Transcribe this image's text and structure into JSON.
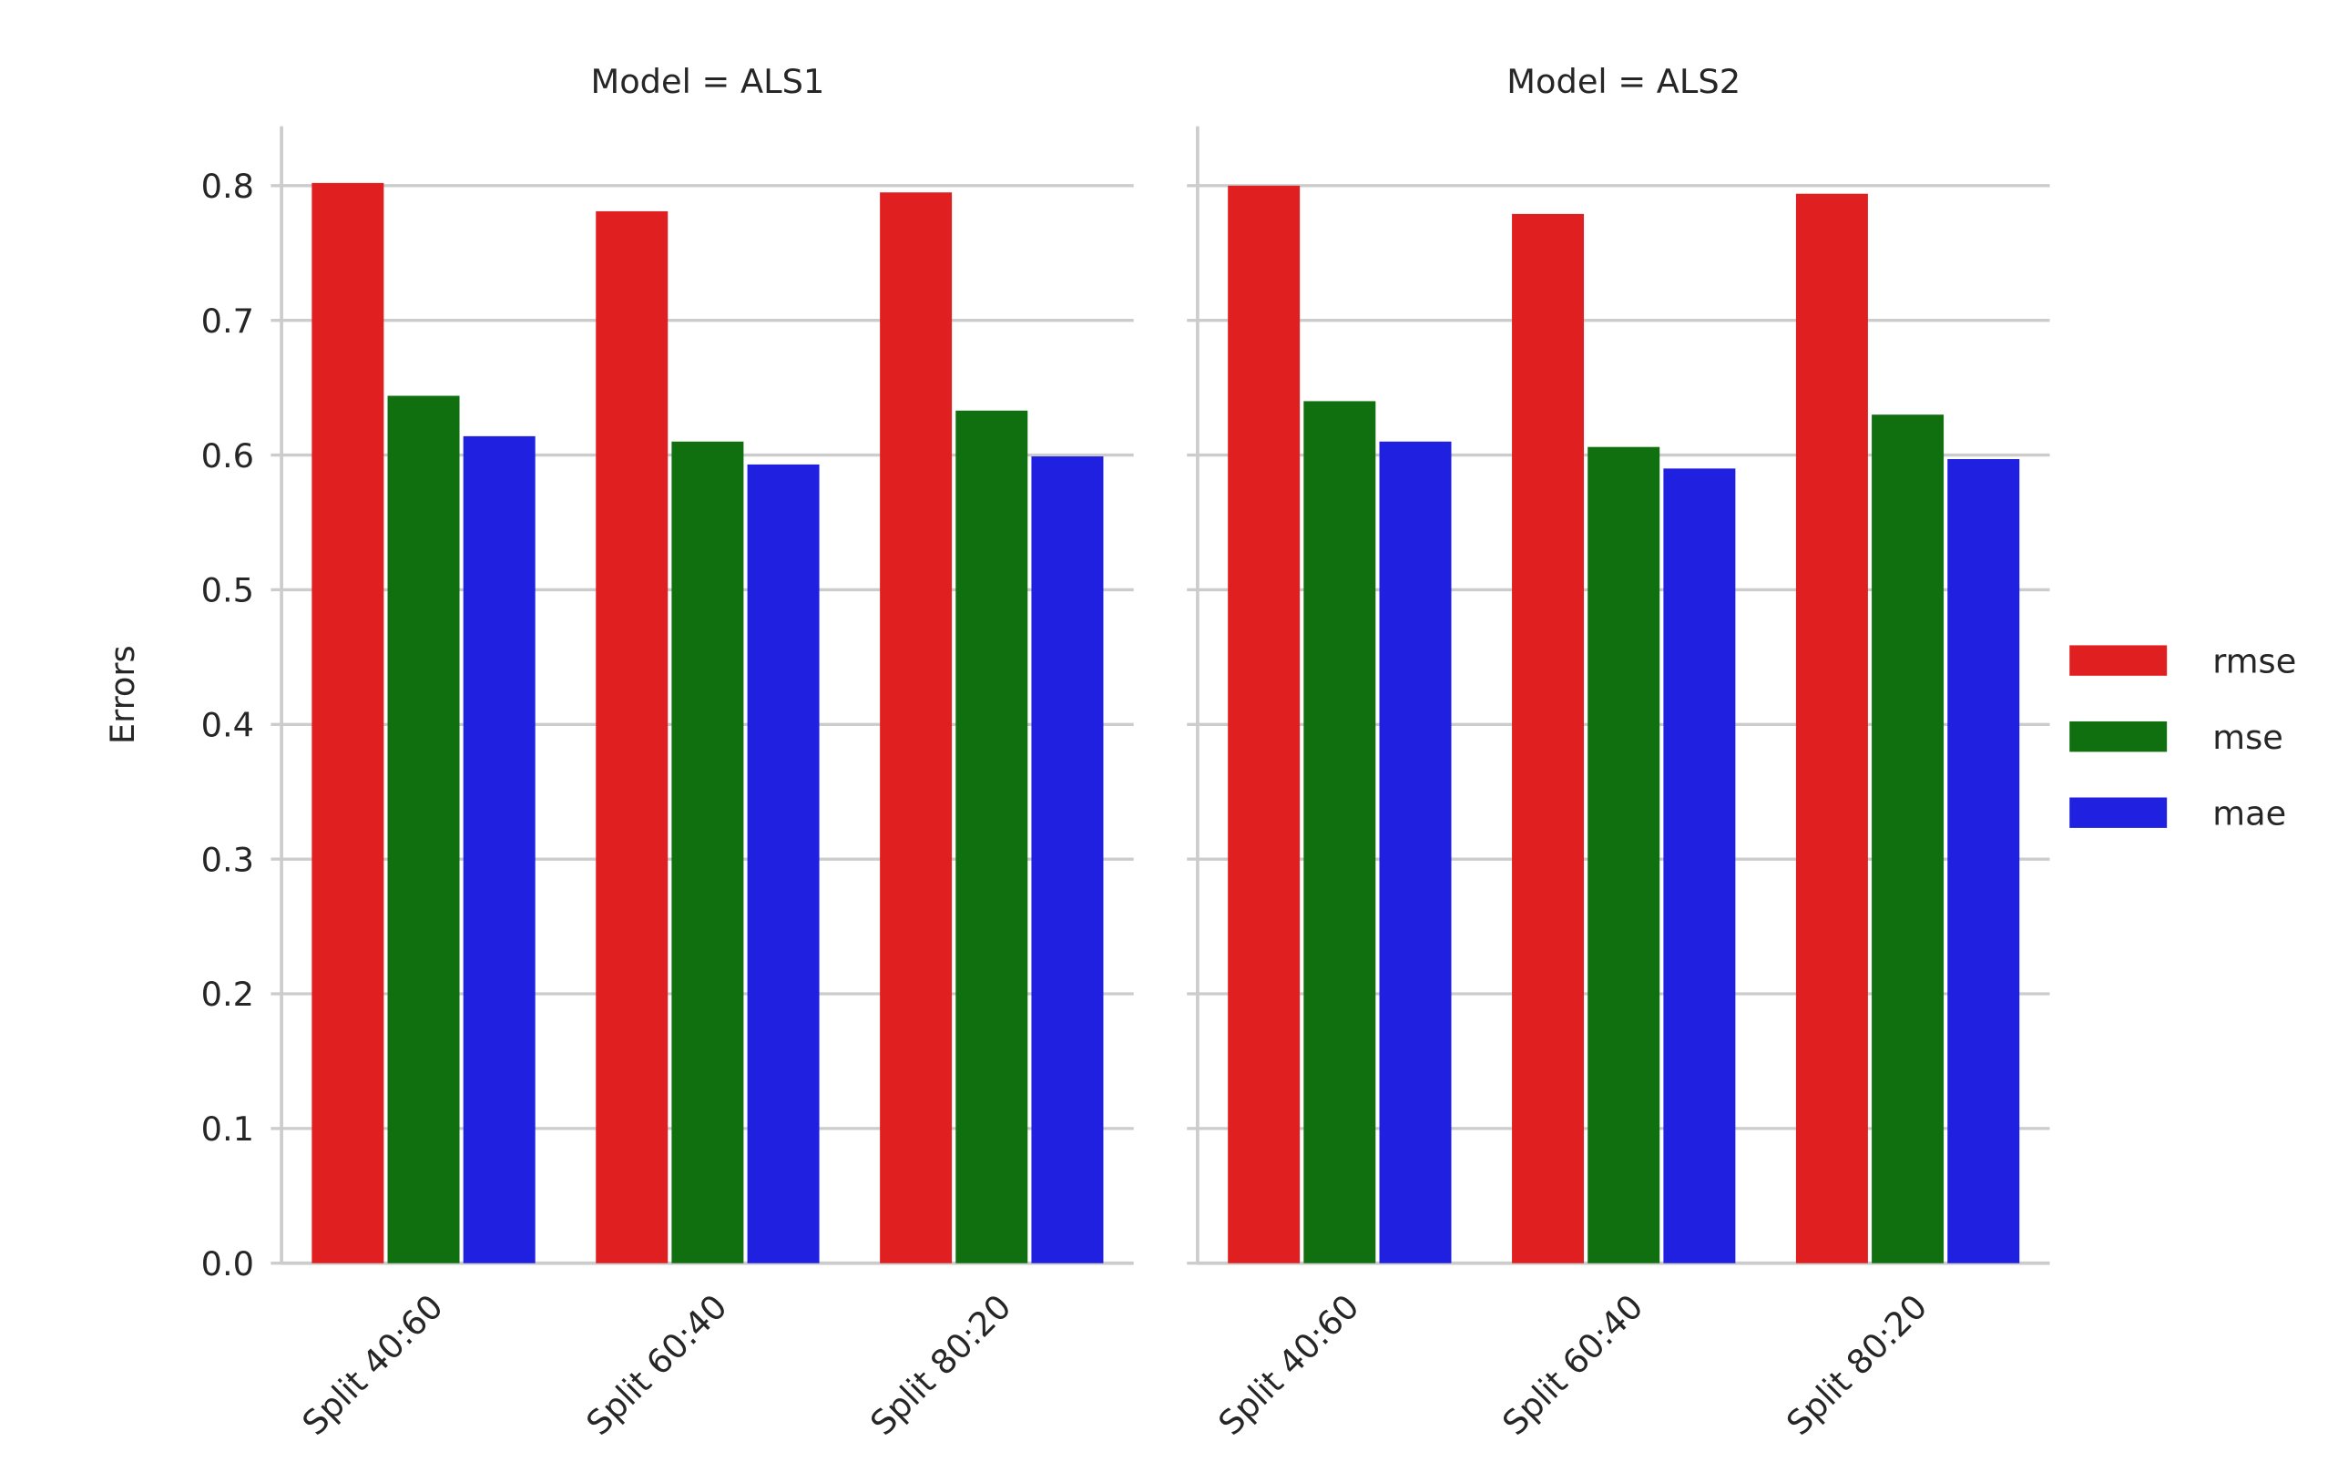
{
  "chart_data": {
    "type": "bar",
    "ylabel": "Errors",
    "ylim": [
      0,
      0.84
    ],
    "yticks": [
      "0.0",
      "0.1",
      "0.2",
      "0.3",
      "0.4",
      "0.5",
      "0.6",
      "0.7",
      "0.8"
    ],
    "grid": true,
    "legend_position": "right",
    "legend": [
      {
        "name": "rmse",
        "color": "#e02020"
      },
      {
        "name": "mse",
        "color": "#107010"
      },
      {
        "name": "mae",
        "color": "#2020e0"
      }
    ],
    "panels": [
      {
        "title": "Model = ALS1",
        "categories": [
          "Split 40:60",
          "Split 60:40",
          "Split 80:20"
        ],
        "series": [
          {
            "name": "rmse",
            "values": [
              0.802,
              0.781,
              0.795
            ]
          },
          {
            "name": "mse",
            "values": [
              0.644,
              0.61,
              0.633
            ]
          },
          {
            "name": "mae",
            "values": [
              0.614,
              0.593,
              0.599
            ]
          }
        ]
      },
      {
        "title": "Model = ALS2",
        "categories": [
          "Split 40:60",
          "Split 60:40",
          "Split 80:20"
        ],
        "series": [
          {
            "name": "rmse",
            "values": [
              0.8,
              0.779,
              0.794
            ]
          },
          {
            "name": "mse",
            "values": [
              0.64,
              0.606,
              0.63
            ]
          },
          {
            "name": "mae",
            "values": [
              0.61,
              0.59,
              0.597
            ]
          }
        ]
      }
    ]
  }
}
